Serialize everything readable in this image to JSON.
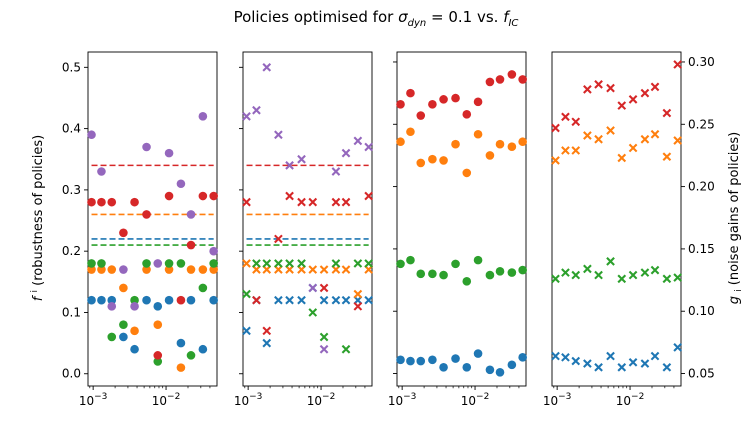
{
  "title_prefix": "Policies optimised for ",
  "title_mid": " vs. ",
  "title_sigma": "σ",
  "title_sigma_sub": "dyn",
  "title_eq": " = 0.1",
  "title_f": "f",
  "title_f_sub": "IC",
  "ylabel_left": "f (robustness of policies)",
  "ylabel_left_sup": "i",
  "ylabel_right": "g (noise gains of policies)",
  "ylabel_right_sub": "i",
  "colors": {
    "blue": "#1f77b4",
    "orange": "#ff7f0e",
    "green": "#2ca02c",
    "red": "#d62728",
    "purple": "#9467bd"
  },
  "chart_data": [
    {
      "type": "scatter",
      "panel": "1",
      "x_scale": "log",
      "xlim": [
        0.00085,
        0.05
      ],
      "ylim": [
        -0.02,
        0.525
      ],
      "xticks": [
        0.001,
        0.01
      ],
      "xtick_labels": [
        "10^-3",
        "10^-2"
      ],
      "yticks": [
        0.0,
        0.1,
        0.2,
        0.3,
        0.4,
        0.5
      ],
      "ytick_labels": [
        "0.0",
        "0.1",
        "0.2",
        "0.3",
        "0.4",
        "0.5"
      ],
      "x": [
        0.00095,
        0.0013,
        0.0018,
        0.0026,
        0.0037,
        0.0054,
        0.0077,
        0.011,
        0.016,
        0.022,
        0.032,
        0.045
      ],
      "marker": "circle",
      "series": [
        {
          "color": "blue",
          "values": [
            0.12,
            0.12,
            0.12,
            0.06,
            0.04,
            0.12,
            0.11,
            0.12,
            0.05,
            0.12,
            0.04,
            0.12
          ]
        },
        {
          "color": "orange",
          "values": [
            0.17,
            0.17,
            0.17,
            0.14,
            0.07,
            0.17,
            0.08,
            0.17,
            0.01,
            0.17,
            0.17,
            0.17
          ]
        },
        {
          "color": "green",
          "values": [
            0.18,
            0.18,
            0.06,
            0.08,
            0.12,
            0.18,
            0.02,
            0.18,
            0.18,
            0.03,
            0.14,
            0.18
          ]
        },
        {
          "color": "red",
          "values": [
            0.28,
            0.28,
            0.28,
            0.23,
            0.28,
            0.26,
            0.03,
            0.29,
            0.12,
            0.21,
            0.29,
            0.29
          ]
        },
        {
          "color": "purple",
          "values": [
            0.39,
            0.33,
            0.11,
            0.17,
            0.11,
            0.37,
            0.18,
            0.36,
            0.31,
            0.26,
            0.42,
            0.2
          ]
        }
      ],
      "hlines": [
        {
          "color": "red",
          "y": 0.34
        },
        {
          "color": "orange",
          "y": 0.26
        },
        {
          "color": "blue",
          "y": 0.22
        },
        {
          "color": "green",
          "y": 0.21
        }
      ]
    },
    {
      "type": "scatter",
      "panel": "2",
      "x_scale": "log",
      "xlim": [
        0.00085,
        0.05
      ],
      "ylim": [
        -0.02,
        0.525
      ],
      "xticks": [
        0.001,
        0.01
      ],
      "xtick_labels": [
        "10^-3",
        "10^-2"
      ],
      "x": [
        0.00095,
        0.0013,
        0.0018,
        0.0026,
        0.0037,
        0.0054,
        0.0077,
        0.011,
        0.016,
        0.022,
        0.032,
        0.045
      ],
      "marker": "x",
      "series": [
        {
          "color": "blue",
          "values": [
            0.07,
            0.12,
            0.05,
            0.12,
            0.12,
            0.12,
            0.14,
            0.12,
            0.12,
            0.12,
            0.12,
            0.12
          ]
        },
        {
          "color": "orange",
          "values": [
            0.18,
            0.17,
            0.17,
            0.17,
            0.17,
            0.17,
            0.17,
            0.17,
            0.17,
            0.17,
            0.13,
            0.17
          ]
        },
        {
          "color": "green",
          "values": [
            0.13,
            0.18,
            0.18,
            0.18,
            0.18,
            0.18,
            0.1,
            0.06,
            0.18,
            0.04,
            0.18,
            0.18
          ]
        },
        {
          "color": "red",
          "values": [
            0.28,
            0.12,
            0.07,
            0.22,
            0.29,
            0.28,
            0.28,
            0.14,
            0.28,
            0.28,
            0.11,
            0.29
          ]
        },
        {
          "color": "purple",
          "values": [
            0.42,
            0.43,
            0.5,
            0.39,
            0.34,
            0.35,
            0.14,
            0.04,
            0.33,
            0.36,
            0.38,
            0.37
          ]
        }
      ],
      "hlines": [
        {
          "color": "red",
          "y": 0.34
        },
        {
          "color": "orange",
          "y": 0.26
        },
        {
          "color": "blue",
          "y": 0.22
        },
        {
          "color": "green",
          "y": 0.21
        }
      ]
    },
    {
      "type": "scatter",
      "panel": "3",
      "x_scale": "log",
      "xlim": [
        0.00085,
        0.05
      ],
      "ylim": [
        0.04,
        0.308
      ],
      "xticks": [
        0.001,
        0.01
      ],
      "xtick_labels": [
        "10^-3",
        "10^-2"
      ],
      "x": [
        0.00095,
        0.0013,
        0.0018,
        0.0026,
        0.0037,
        0.0054,
        0.0077,
        0.011,
        0.016,
        0.022,
        0.032,
        0.045
      ],
      "marker": "circle",
      "series": [
        {
          "color": "blue",
          "values": [
            0.061,
            0.06,
            0.06,
            0.061,
            0.055,
            0.062,
            0.055,
            0.066,
            0.053,
            0.051,
            0.057,
            0.063
          ]
        },
        {
          "color": "orange",
          "values": [
            0.236,
            0.244,
            0.219,
            0.222,
            0.221,
            0.234,
            0.211,
            0.242,
            0.225,
            0.234,
            0.232,
            0.236
          ]
        },
        {
          "color": "green",
          "values": [
            0.138,
            0.141,
            0.13,
            0.13,
            0.129,
            0.138,
            0.124,
            0.141,
            0.129,
            0.132,
            0.131,
            0.133
          ]
        },
        {
          "color": "red",
          "values": [
            0.266,
            0.275,
            0.257,
            0.266,
            0.27,
            0.271,
            0.258,
            0.268,
            0.284,
            0.286,
            0.29,
            0.286
          ]
        }
      ],
      "hlines": []
    },
    {
      "type": "scatter",
      "panel": "4",
      "x_scale": "log",
      "xlim": [
        0.00085,
        0.05
      ],
      "ylim": [
        0.04,
        0.308
      ],
      "xticks": [
        0.001,
        0.01
      ],
      "xtick_labels": [
        "10^-3",
        "10^-2"
      ],
      "yticks": [
        0.05,
        0.1,
        0.15,
        0.2,
        0.25,
        0.3
      ],
      "ytick_labels": [
        "0.05",
        "0.10",
        "0.15",
        "0.20",
        "0.25",
        "0.30"
      ],
      "x": [
        0.00095,
        0.0013,
        0.0018,
        0.0026,
        0.0037,
        0.0054,
        0.0077,
        0.011,
        0.016,
        0.022,
        0.032,
        0.045
      ],
      "marker": "x",
      "series": [
        {
          "color": "blue",
          "values": [
            0.064,
            0.063,
            0.06,
            0.058,
            0.055,
            0.064,
            0.055,
            0.059,
            0.058,
            0.064,
            0.055,
            0.071
          ]
        },
        {
          "color": "orange",
          "values": [
            0.221,
            0.229,
            0.229,
            0.241,
            0.238,
            0.245,
            0.223,
            0.231,
            0.238,
            0.242,
            0.224,
            0.237
          ]
        },
        {
          "color": "green",
          "values": [
            0.126,
            0.131,
            0.129,
            0.134,
            0.129,
            0.14,
            0.126,
            0.129,
            0.131,
            0.133,
            0.126,
            0.127
          ]
        },
        {
          "color": "red",
          "values": [
            0.247,
            0.256,
            0.252,
            0.278,
            0.282,
            0.279,
            0.265,
            0.27,
            0.275,
            0.28,
            0.259,
            0.298
          ]
        }
      ],
      "hlines": []
    }
  ]
}
